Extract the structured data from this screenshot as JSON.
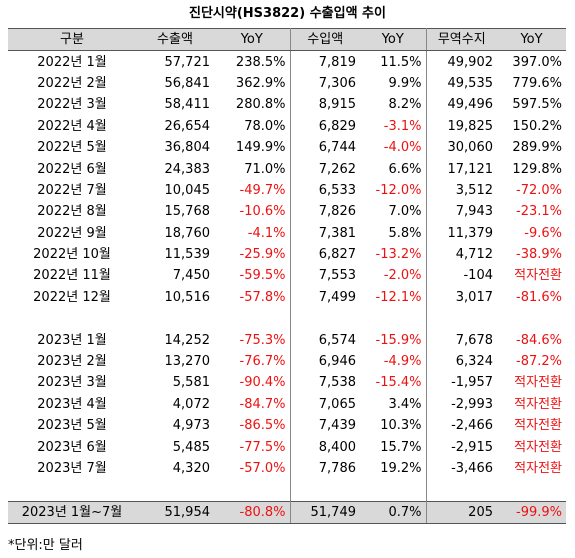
{
  "title": "진단시약(HS3822) 수출입액 추이",
  "headers": [
    "구분",
    "수출액",
    "YoY",
    "수입액",
    "YoY",
    "무역수지",
    "YoY"
  ],
  "rows": [
    {
      "period": "2022년 1월",
      "export": "57,721",
      "export_yoy": "238.5%",
      "import": "7,819",
      "import_yoy": "11.5%",
      "balance": "49,902",
      "balance_yoy": "397.0%"
    },
    {
      "period": "2022년 2월",
      "export": "56,841",
      "export_yoy": "362.9%",
      "import": "7,306",
      "import_yoy": "9.9%",
      "balance": "49,535",
      "balance_yoy": "779.6%"
    },
    {
      "period": "2022년 3월",
      "export": "58,411",
      "export_yoy": "280.8%",
      "import": "8,915",
      "import_yoy": "8.2%",
      "balance": "49,496",
      "balance_yoy": "597.5%"
    },
    {
      "period": "2022년 4월",
      "export": "26,654",
      "export_yoy": "78.0%",
      "import": "6,829",
      "import_yoy": "-3.1%",
      "balance": "19,825",
      "balance_yoy": "150.2%"
    },
    {
      "period": "2022년 5월",
      "export": "36,804",
      "export_yoy": "149.9%",
      "import": "6,744",
      "import_yoy": "-4.0%",
      "balance": "30,060",
      "balance_yoy": "289.9%"
    },
    {
      "period": "2022년 6월",
      "export": "24,383",
      "export_yoy": "71.0%",
      "import": "7,262",
      "import_yoy": "6.6%",
      "balance": "17,121",
      "balance_yoy": "129.8%"
    },
    {
      "period": "2022년 7월",
      "export": "10,045",
      "export_yoy": "-49.7%",
      "import": "6,533",
      "import_yoy": "-12.0%",
      "balance": "3,512",
      "balance_yoy": "-72.0%"
    },
    {
      "period": "2022년 8월",
      "export": "15,768",
      "export_yoy": "-10.6%",
      "import": "7,826",
      "import_yoy": "7.0%",
      "balance": "7,943",
      "balance_yoy": "-23.1%"
    },
    {
      "period": "2022년 9월",
      "export": "18,760",
      "export_yoy": "-4.1%",
      "import": "7,381",
      "import_yoy": "5.8%",
      "balance": "11,379",
      "balance_yoy": "-9.6%"
    },
    {
      "period": "2022년 10월",
      "export": "11,539",
      "export_yoy": "-25.9%",
      "import": "6,827",
      "import_yoy": "-13.2%",
      "balance": "4,712",
      "balance_yoy": "-38.9%"
    },
    {
      "period": "2022년 11월",
      "export": "7,450",
      "export_yoy": "-59.5%",
      "import": "7,553",
      "import_yoy": "-2.0%",
      "balance": "-104",
      "balance_yoy": "적자전환"
    },
    {
      "period": "2022년 12월",
      "export": "10,516",
      "export_yoy": "-57.8%",
      "import": "7,499",
      "import_yoy": "-12.1%",
      "balance": "3,017",
      "balance_yoy": "-81.6%"
    },
    {
      "blank": true
    },
    {
      "period": "2023년 1월",
      "export": "14,252",
      "export_yoy": "-75.3%",
      "import": "6,574",
      "import_yoy": "-15.9%",
      "balance": "7,678",
      "balance_yoy": "-84.6%"
    },
    {
      "period": "2023년 2월",
      "export": "13,270",
      "export_yoy": "-76.7%",
      "import": "6,946",
      "import_yoy": "-4.9%",
      "balance": "6,324",
      "balance_yoy": "-87.2%"
    },
    {
      "period": "2023년 3월",
      "export": "5,581",
      "export_yoy": "-90.4%",
      "import": "7,538",
      "import_yoy": "-15.4%",
      "balance": "-1,957",
      "balance_yoy": "적자전환"
    },
    {
      "period": "2023년 4월",
      "export": "4,072",
      "export_yoy": "-84.7%",
      "import": "7,065",
      "import_yoy": "3.4%",
      "balance": "-2,993",
      "balance_yoy": "적자전환"
    },
    {
      "period": "2023년 5월",
      "export": "4,973",
      "export_yoy": "-86.5%",
      "import": "7,439",
      "import_yoy": "10.3%",
      "balance": "-2,466",
      "balance_yoy": "적자전환"
    },
    {
      "period": "2023년 6월",
      "export": "5,485",
      "export_yoy": "-77.5%",
      "import": "8,400",
      "import_yoy": "15.7%",
      "balance": "-2,915",
      "balance_yoy": "적자전환"
    },
    {
      "period": "2023년 7월",
      "export": "4,320",
      "export_yoy": "-57.0%",
      "import": "7,786",
      "import_yoy": "19.2%",
      "balance": "-3,466",
      "balance_yoy": "적자전환"
    },
    {
      "blank": true
    }
  ],
  "total": {
    "period": "2023년 1월~7월",
    "export": "51,954",
    "export_yoy": "-80.8%",
    "import": "51,749",
    "import_yoy": "0.7%",
    "balance": "205",
    "balance_yoy": "-99.9%"
  },
  "note": "*단위:만 달러",
  "colors": {
    "header_bg": "#d9d9d9",
    "negative_text": "#ee1111",
    "text": "#000000"
  }
}
